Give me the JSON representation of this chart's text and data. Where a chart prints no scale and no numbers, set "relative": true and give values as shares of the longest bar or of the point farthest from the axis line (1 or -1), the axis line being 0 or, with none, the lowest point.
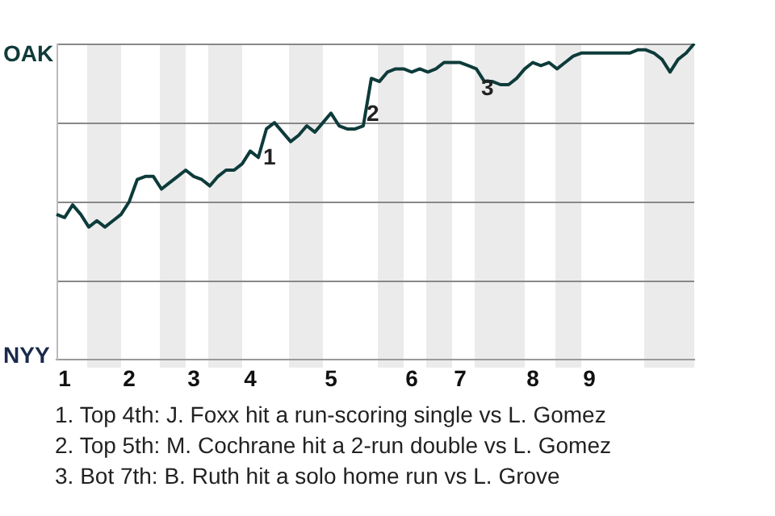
{
  "chart_data": {
    "type": "line",
    "relative": true,
    "categories": [
      null,
      "1",
      null,
      null,
      null,
      null,
      null,
      null,
      null,
      "2",
      null,
      null,
      null,
      null,
      null,
      null,
      null,
      "3",
      null,
      null,
      null,
      null,
      null,
      null,
      "4",
      null,
      null,
      null,
      null,
      null,
      null,
      null,
      null,
      null,
      "5",
      null,
      null,
      null,
      null,
      null,
      null,
      null,
      null,
      null,
      "6",
      null,
      null,
      null,
      null,
      null,
      "7",
      null,
      null,
      null,
      null,
      null,
      null,
      null,
      null,
      "8",
      null,
      null,
      null,
      null,
      null,
      null,
      "9",
      null,
      null,
      null,
      null,
      null,
      null,
      null,
      null,
      null,
      null,
      null,
      null,
      null
    ],
    "series": [
      {
        "color": "#0d3b3a",
        "values": [
          0.46,
          0.45,
          0.49,
          0.46,
          0.42,
          0.44,
          0.42,
          0.44,
          0.46,
          0.5,
          0.57,
          0.58,
          0.58,
          0.54,
          0.56,
          0.58,
          0.6,
          0.58,
          0.57,
          0.55,
          0.58,
          0.6,
          0.6,
          0.62,
          0.66,
          0.64,
          0.73,
          0.75,
          0.72,
          0.69,
          0.71,
          0.74,
          0.72,
          0.75,
          0.78,
          0.74,
          0.73,
          0.73,
          0.74,
          0.89,
          0.88,
          0.91,
          0.92,
          0.92,
          0.91,
          0.92,
          0.91,
          0.92,
          0.94,
          0.94,
          0.94,
          0.93,
          0.92,
          0.88,
          0.88,
          0.87,
          0.87,
          0.89,
          0.92,
          0.94,
          0.93,
          0.94,
          0.92,
          0.94,
          0.96,
          0.97,
          0.97,
          0.97,
          0.97,
          0.97,
          0.97,
          0.97,
          0.98,
          0.98,
          0.97,
          0.95,
          0.91,
          0.95,
          0.97,
          1.0
        ]
      }
    ],
    "legend": false,
    "marker": "none",
    "line_style": "solid",
    "ref_lines": [
      {
        "axis": "y",
        "value": 0.25,
        "color": "#888888"
      },
      {
        "axis": "y",
        "value": 0.5,
        "color": "#888888"
      },
      {
        "axis": "y",
        "value": 0.75,
        "color": "#888888"
      },
      {
        "axis": "y",
        "value": 1,
        "color": "#888888"
      }
    ],
    "annotations": [
      "OAK",
      "NYY",
      "1",
      "2",
      "3",
      "1. Top 4th: J. Foxx hit a run-scoring single vs L. Gomez",
      "2. Top 5th: M. Cochrane hit a 2-run double vs L. Gomez",
      "3. Bot 7th: B. Ruth hit a solo home run vs L. Grove"
    ]
  }
}
